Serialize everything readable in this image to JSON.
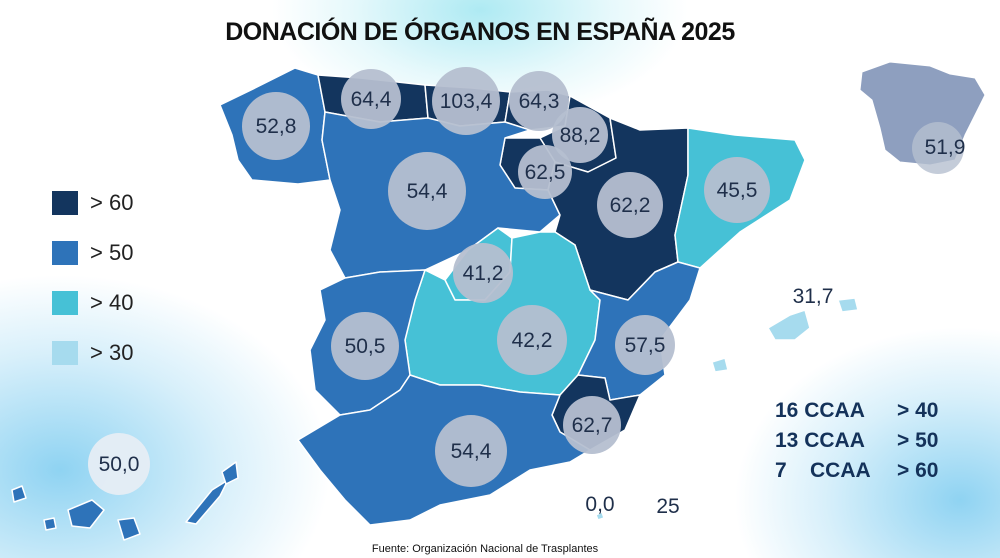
{
  "title": "DONACIÓN DE ÓRGANOS EN ESPAÑA 2025",
  "colors": {
    "gt60": "#13355e",
    "gt50": "#2e73b9",
    "gt40": "#46c1d6",
    "gt30": "#a6dbee",
    "bubble": "#b5bfd0",
    "national": "#8e9fbf"
  },
  "legend": [
    {
      "label": "> 60",
      "color": "#13355e"
    },
    {
      "label": "> 50",
      "color": "#2e73b9"
    },
    {
      "label": "> 40",
      "color": "#46c1d6"
    },
    {
      "label": "> 30",
      "color": "#a6dbee"
    }
  ],
  "regions": {
    "galicia": "52,8",
    "asturias": "64,4",
    "cantabria": "103,4",
    "pais_vasco": "64,3",
    "navarra": "88,2",
    "la_rioja": "62,5",
    "aragon": "62,2",
    "cataluna": "45,5",
    "castilla_leon": "54,4",
    "madrid": "41,2",
    "castilla_la_mancha": "42,2",
    "extremadura": "50,5",
    "valencia": "57,5",
    "murcia": "62,7",
    "andalucia": "54,4",
    "baleares": "31,7",
    "canarias": "50,0",
    "ceuta": "0,0",
    "melilla": "25",
    "espana": "51,9"
  },
  "stats": [
    {
      "count": "16 CCAA",
      "threshold": "> 40"
    },
    {
      "count": "13 CCAA",
      "threshold": "> 50"
    },
    {
      "count": "7    CCAA",
      "threshold": "> 60"
    }
  ],
  "source": "Fuente: Organización Nacional de Trasplantes"
}
